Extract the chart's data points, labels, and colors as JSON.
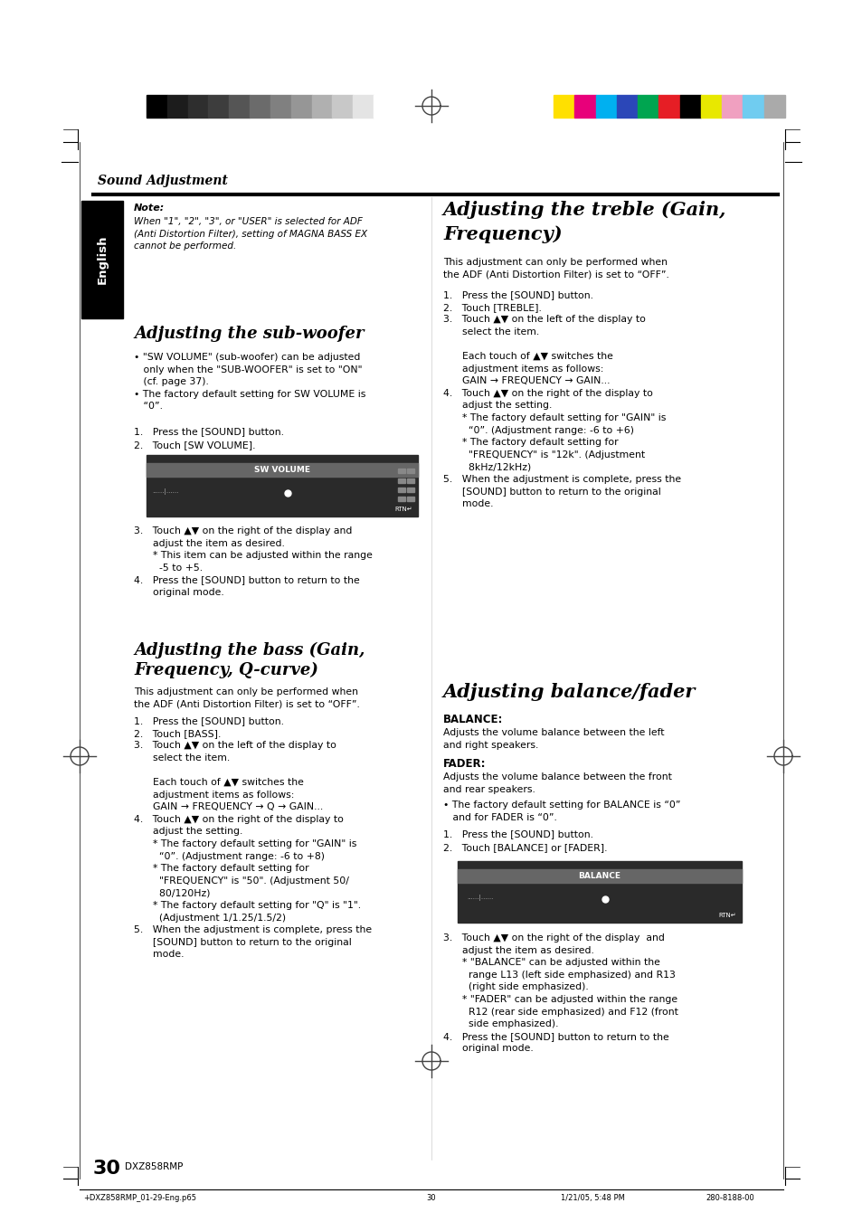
{
  "page_bg": "#ffffff",
  "grayscale_colors": [
    "#000000",
    "#1c1c1c",
    "#2e2e2e",
    "#3d3d3d",
    "#555555",
    "#6b6b6b",
    "#808080",
    "#969696",
    "#b0b0b0",
    "#c8c8c8",
    "#e4e4e4",
    "#ffffff"
  ],
  "color_swatches": [
    "#ffe000",
    "#e8007a",
    "#00b0f0",
    "#2b47b8",
    "#00a550",
    "#e61e25",
    "#000000",
    "#e8e800",
    "#f0a0c0",
    "#70ccf0",
    "#aaaaaa"
  ],
  "section_title": "Sound Adjustment",
  "left_tab_text": "English",
  "page_number": "30",
  "page_number_label": "DXZ858RMP",
  "footer_left": "+DXZ858RMP_01-29-Eng.p65",
  "footer_center": "30",
  "footer_right_date": "1/21/05, 5:48 PM",
  "footer_right_code": "280-8188-00"
}
